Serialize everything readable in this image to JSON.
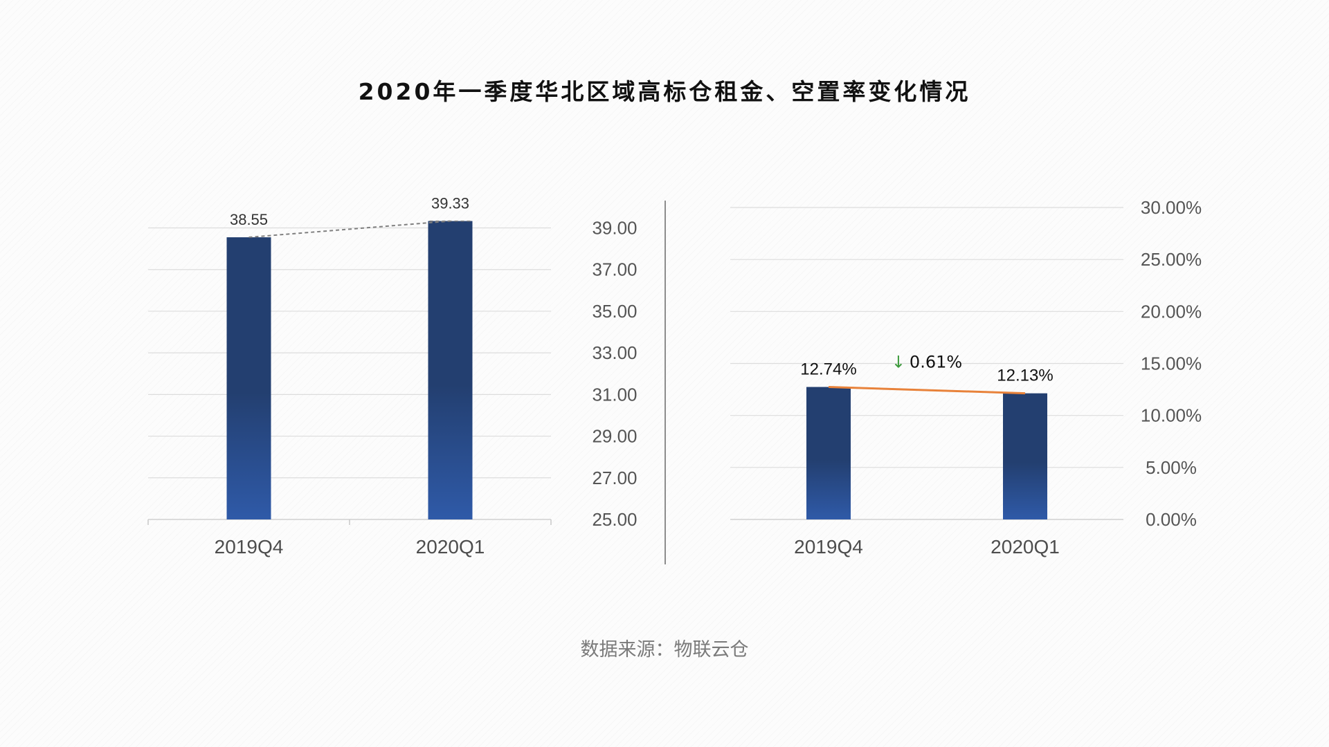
{
  "title": "2020年一季度华北区域高标仓租金、空置率变化情况",
  "source": "数据来源：物联云仓",
  "chart_data": [
    {
      "type": "bar",
      "categories": [
        "2019Q4",
        "2020Q1"
      ],
      "values": [
        38.55,
        39.33
      ],
      "value_labels": [
        "38.55",
        "39.33"
      ],
      "ylim": [
        25,
        39.98
      ],
      "yticks": [
        25,
        27,
        29,
        31,
        33,
        35,
        37,
        39
      ],
      "ytick_labels": [
        "25.00",
        "27.00",
        "29.00",
        "31.00",
        "33.00",
        "35.00",
        "37.00",
        "39.00"
      ],
      "axis_position": "right",
      "trend_line": "dashed",
      "bar_color_top": "#233f70",
      "bar_color_bottom": "#2f5aa8",
      "trend_color": "#7f7f7f"
    },
    {
      "type": "bar",
      "categories": [
        "2019Q4",
        "2020Q1"
      ],
      "values": [
        12.74,
        12.13
      ],
      "value_labels": [
        "12.74%",
        "12.13%"
      ],
      "ylim": [
        0,
        30
      ],
      "yticks": [
        0,
        5,
        10,
        15,
        20,
        25,
        30
      ],
      "ytick_labels": [
        "0.00%",
        "5.00%",
        "10.00%",
        "15.00%",
        "20.00%",
        "25.00%",
        "30.00%"
      ],
      "axis_position": "right",
      "trend_line": "solid",
      "change_label": "0.61%",
      "change_arrow": "↓",
      "bar_color_top": "#233f70",
      "bar_color_bottom": "#2f5aa8",
      "trend_color": "#e8823a",
      "change_color": "#3c9a3c"
    }
  ]
}
